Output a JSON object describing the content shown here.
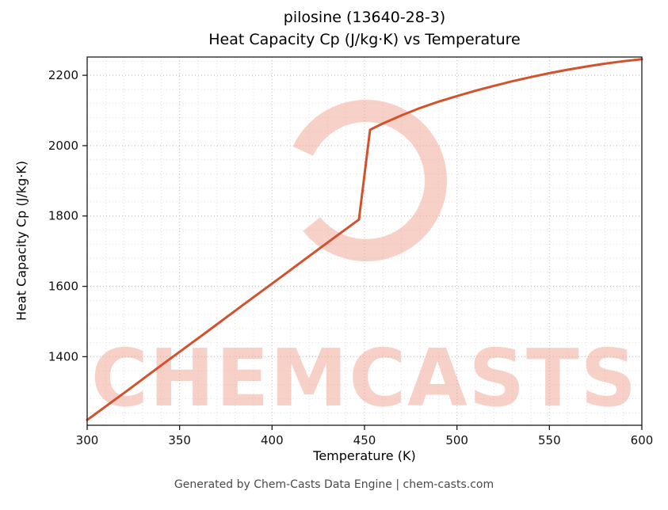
{
  "title": {
    "line1": "pilosine (13640-28-3)",
    "line2": "Heat Capacity Cp (J/kg·K) vs Temperature"
  },
  "footer": "Generated by Chem-Casts Data Engine | chem-casts.com",
  "watermark": {
    "text": "CHEMCASTS",
    "color": "#efa28e",
    "opacity": 0.5
  },
  "chart_data": {
    "type": "line",
    "title": "pilosine (13640-28-3)\nHeat Capacity Cp (J/kg·K) vs Temperature",
    "xlabel": "Temperature (K)",
    "ylabel": "Heat Capacity Cp (J/kg·K)",
    "xlim": [
      300,
      600
    ],
    "ylim": [
      1205,
      2252
    ],
    "xticks": [
      300,
      350,
      400,
      450,
      500,
      550,
      600
    ],
    "yticks": [
      1400,
      1600,
      1800,
      2000,
      2200
    ],
    "grid": true,
    "minor_grid": true,
    "legend": "none",
    "line_color": "#d2522d",
    "line_width": 3,
    "series": [
      {
        "name": "Heat Capacity Cp",
        "x": [
          300,
          321,
          342,
          363,
          384,
          405,
          426,
          447,
          453,
          460,
          470,
          480,
          490,
          500,
          510,
          520,
          530,
          540,
          550,
          560,
          570,
          580,
          590,
          600
        ],
        "y": [
          1220,
          1301,
          1383,
          1464,
          1546,
          1627,
          1709,
          1790,
          2045,
          2063,
          2086,
          2107,
          2125,
          2141,
          2156,
          2170,
          2183,
          2195,
          2206,
          2216,
          2225,
          2233,
          2240,
          2246
        ]
      }
    ]
  }
}
